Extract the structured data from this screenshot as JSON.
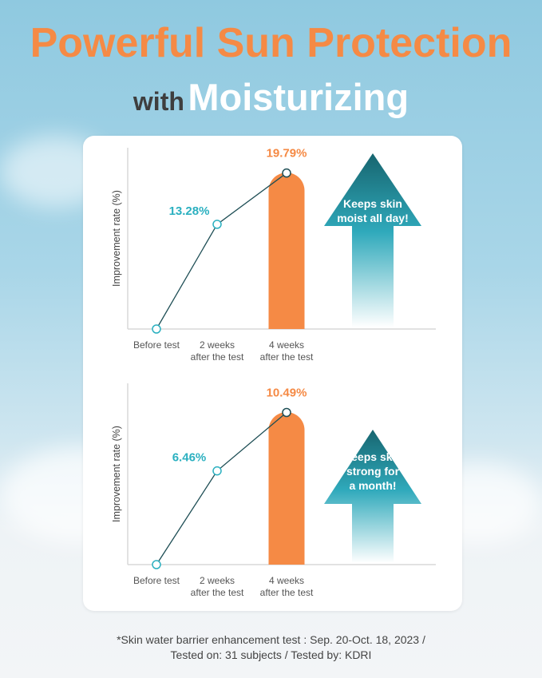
{
  "header": {
    "title": "Powerful Sun Protection",
    "subtitle_prefix": "with",
    "subtitle_main": "Moisturizing"
  },
  "colors": {
    "title": "#f58a45",
    "bar": "#f58a45",
    "line_label": "#2bb0c0",
    "arrow_top": "#17656f",
    "arrow_bottom": "#2fa9bb",
    "line": "#1e4e55"
  },
  "chart_data": [
    {
      "type": "line+bar",
      "ylabel": "Improvement rate (%)",
      "categories": [
        "Before test",
        "2 weeks\nafter the test",
        "4 weeks\nafter the test"
      ],
      "values": [
        0,
        13.28,
        19.79
      ],
      "labels": [
        "",
        "13.28%",
        "19.79%"
      ],
      "bar_category": "4 weeks\nafter the test",
      "ymax": 23,
      "arrow_text": [
        "Keeps skin",
        "moist all day!"
      ],
      "grid": false
    },
    {
      "type": "line+bar",
      "ylabel": "Improvement rate (%)",
      "categories": [
        "Before test",
        "2 weeks\nafter the test",
        "4 weeks\nafter the test"
      ],
      "values": [
        0,
        6.46,
        10.49
      ],
      "labels": [
        "",
        "6.46%",
        "10.49%"
      ],
      "bar_category": "4 weeks\nafter the test",
      "ymax": 12.5,
      "arrow_text": [
        "Keeps skin",
        "strong for",
        "a month!"
      ],
      "grid": false
    }
  ],
  "footnote": {
    "line1": "*Skin water barrier enhancement test : Sep. 20-Oct. 18, 2023 /",
    "line2": "Tested on: 31 subjects / Tested by: KDRI"
  }
}
